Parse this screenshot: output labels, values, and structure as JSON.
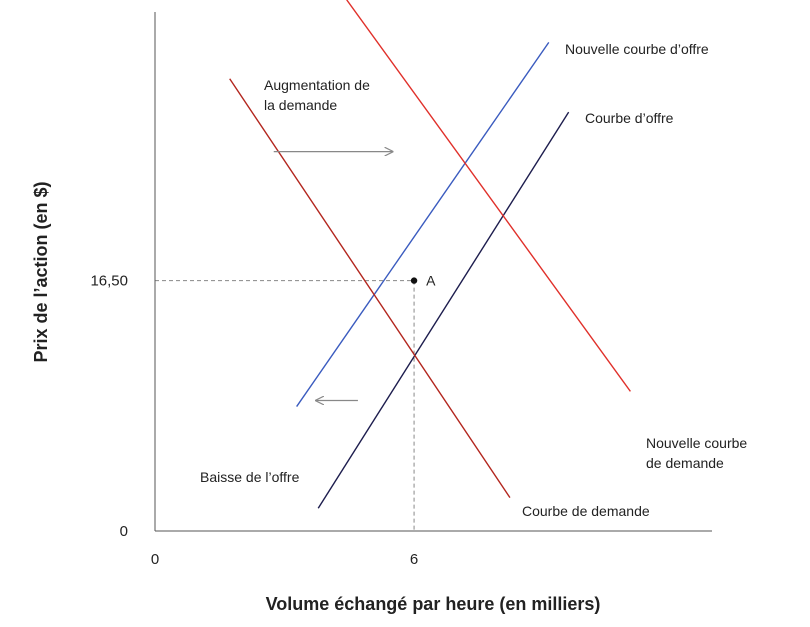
{
  "chart_data": {
    "type": "line",
    "xlabel": "Volume échangé par heure (en milliers)",
    "ylabel": "Prix de l’action (en $)",
    "x_ticks": [
      {
        "value": 0,
        "label": "0"
      },
      {
        "value": 6,
        "label": "6"
      }
    ],
    "y_ticks": [
      {
        "value": 0,
        "label": "0"
      },
      {
        "value": 16.5,
        "label": "16,50"
      }
    ],
    "xlim": [
      0,
      12.9
    ],
    "ylim": [
      0,
      34.2
    ],
    "grid": false,
    "legend": "none",
    "series": [
      {
        "name": "Nouvelle courbe d’offre",
        "color": "#3a5bbf",
        "points": [
          [
            3.28,
            8.2
          ],
          [
            9.12,
            32.2
          ]
        ],
        "label_lines": [
          "Nouvelle courbe d’offre"
        ]
      },
      {
        "name": "Courbe d’offre",
        "color": "#1d1d4e",
        "points": [
          [
            3.78,
            1.5
          ],
          [
            9.58,
            27.6
          ]
        ],
        "label_lines": [
          "Courbe d’offre"
        ]
      },
      {
        "name": "Courbe de demande",
        "color": "#b3261e",
        "points": [
          [
            1.73,
            29.8
          ],
          [
            8.22,
            2.2
          ]
        ],
        "label_lines": [
          "Courbe de demande"
        ]
      },
      {
        "name": "Nouvelle courbe de demande",
        "color": "#e0302a",
        "points": [
          [
            4.44,
            35.0
          ],
          [
            11.01,
            9.2
          ]
        ],
        "label_lines": [
          "Nouvelle courbe",
          "de demande"
        ]
      }
    ],
    "point": {
      "label": "A",
      "x": 6,
      "y": 16.5
    },
    "annotations": [
      {
        "lines": [
          "Augmentation de",
          "la demande"
        ],
        "arrow": "right",
        "arrow_from": [
          2.75,
          25.0
        ],
        "arrow_to": [
          5.5,
          25.0
        ],
        "color": "#888888"
      },
      {
        "lines": [
          "Baisse de l’offre"
        ],
        "arrow": "left",
        "arrow_from": [
          4.7,
          8.6
        ],
        "arrow_to": [
          3.73,
          8.6
        ],
        "color": "#888888"
      }
    ]
  }
}
